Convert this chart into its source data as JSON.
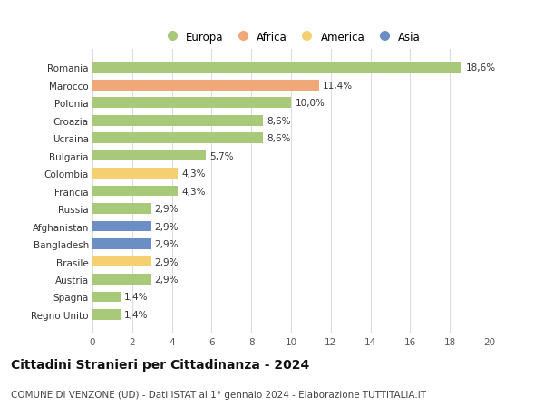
{
  "categories": [
    "Romania",
    "Marocco",
    "Polonia",
    "Croazia",
    "Ucraina",
    "Bulgaria",
    "Colombia",
    "Francia",
    "Russia",
    "Afghanistan",
    "Bangladesh",
    "Brasile",
    "Austria",
    "Spagna",
    "Regno Unito"
  ],
  "values": [
    18.6,
    11.4,
    10.0,
    8.6,
    8.6,
    5.7,
    4.3,
    4.3,
    2.9,
    2.9,
    2.9,
    2.9,
    2.9,
    1.4,
    1.4
  ],
  "labels": [
    "18,6%",
    "11,4%",
    "10,0%",
    "8,6%",
    "8,6%",
    "5,7%",
    "4,3%",
    "4,3%",
    "2,9%",
    "2,9%",
    "2,9%",
    "2,9%",
    "2,9%",
    "1,4%",
    "1,4%"
  ],
  "continents": [
    "Europa",
    "Africa",
    "Europa",
    "Europa",
    "Europa",
    "Europa",
    "America",
    "Europa",
    "Europa",
    "Asia",
    "Asia",
    "America",
    "Europa",
    "Europa",
    "Europa"
  ],
  "colors": {
    "Europa": "#a8c87a",
    "Africa": "#f0a878",
    "America": "#f5d070",
    "Asia": "#6b8fc4"
  },
  "legend_order": [
    "Europa",
    "Africa",
    "America",
    "Asia"
  ],
  "title": "Cittadini Stranieri per Cittadinanza - 2024",
  "subtitle": "COMUNE DI VENZONE (UD) - Dati ISTAT al 1° gennaio 2024 - Elaborazione TUTTITALIA.IT",
  "xlim": [
    0,
    20
  ],
  "xticks": [
    0,
    2,
    4,
    6,
    8,
    10,
    12,
    14,
    16,
    18,
    20
  ],
  "background_color": "#ffffff",
  "grid_color": "#dddddd",
  "bar_height": 0.6,
  "label_fontsize": 7.5,
  "tick_fontsize": 7.5,
  "title_fontsize": 10,
  "subtitle_fontsize": 7.5,
  "legend_fontsize": 8.5
}
